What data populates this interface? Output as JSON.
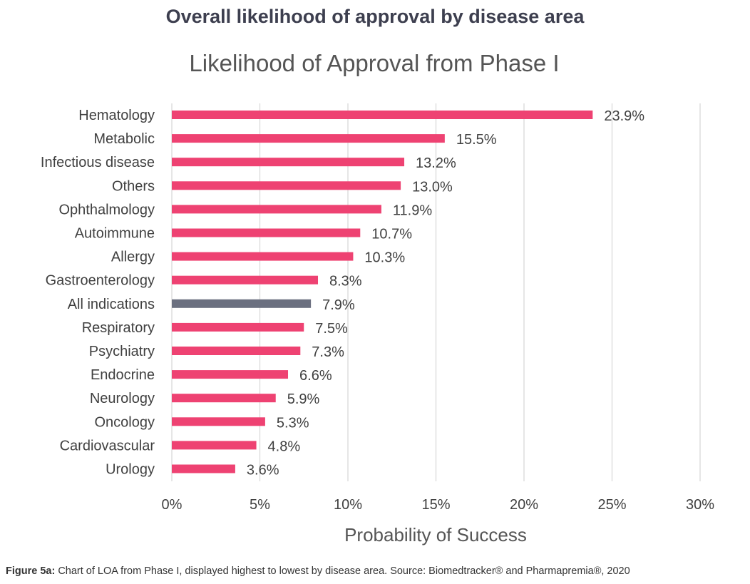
{
  "heading": "Overall likelihood of approval by disease area",
  "caption": {
    "label": "Figure 5a:",
    "text": " Chart of LOA from Phase I, displayed highest to lowest by disease area. Source: Biomedtracker® and Pharmapremia®, 2020"
  },
  "colors": {
    "bar": "#ee4272",
    "highlight": "#6b7080",
    "grid": "#d9d9d9",
    "text": "#404040"
  },
  "chart_data": {
    "type": "bar",
    "orientation": "horizontal",
    "title": "Likelihood of Approval from Phase I",
    "xlabel": "Probability of Success",
    "ylabel": "",
    "xlim": [
      0,
      30
    ],
    "x_ticks": [
      "0%",
      "5%",
      "10%",
      "15%",
      "20%",
      "25%",
      "30%"
    ],
    "grid": "vertical",
    "categories": [
      "Hematology",
      "Metabolic",
      "Infectious disease",
      "Others",
      "Ophthalmology",
      "Autoimmune",
      "Allergy",
      "Gastroenterology",
      "All indications",
      "Respiratory",
      "Psychiatry",
      "Endocrine",
      "Neurology",
      "Oncology",
      "Cardiovascular",
      "Urology"
    ],
    "values": [
      23.9,
      15.5,
      13.2,
      13.0,
      11.9,
      10.7,
      10.3,
      8.3,
      7.9,
      7.5,
      7.3,
      6.6,
      5.9,
      5.3,
      4.8,
      3.6
    ],
    "data_labels": [
      "23.9%",
      "15.5%",
      "13.2%",
      "13.0%",
      "11.9%",
      "10.7%",
      "10.3%",
      "8.3%",
      "7.9%",
      "7.5%",
      "7.3%",
      "6.6%",
      "5.9%",
      "5.3%",
      "4.8%",
      "3.6%"
    ],
    "highlight_category": "All indications"
  }
}
